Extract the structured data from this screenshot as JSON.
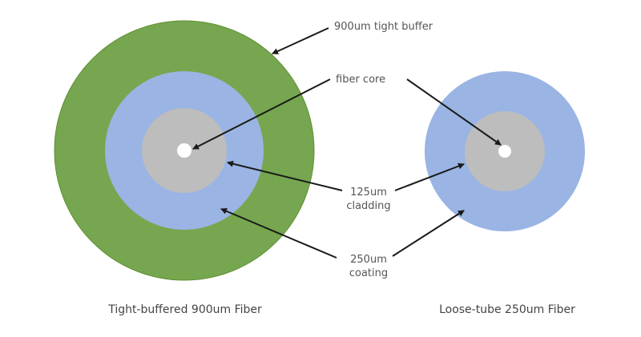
{
  "labels": {
    "buffer": "900um tight buffer",
    "core": "fiber core",
    "cladding_1": "125um",
    "cladding_2": "cladding",
    "coating_1": "250um",
    "coating_2": "coating"
  },
  "captions": {
    "left": "Tight-buffered 900um Fiber",
    "right": "Loose-tube 250um Fiber"
  },
  "colors": {
    "buffer": "#76a64f",
    "coating": "#9ab4e4",
    "cladding": "#bdbdbd",
    "core": "#ffffff",
    "arrow": "#1a1a1a"
  }
}
